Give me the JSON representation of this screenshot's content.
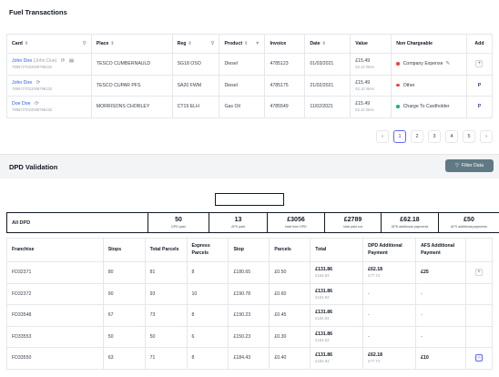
{
  "fuel": {
    "title": "Fuel Transactions",
    "columns": {
      "card": "Card",
      "place": "Place",
      "reg": "Reg",
      "product": "Product",
      "invoice": "Invoice",
      "date": "Date",
      "value": "Value",
      "non_chargeable": "Non Chargeable",
      "add": "Add"
    },
    "rows": [
      {
        "card_name": "John Doe",
        "card_alias": "(John Doe)",
        "card_number": "7896727022008796232",
        "place": "TESCO CUMBERNAULD",
        "reg": "SG18 OSO",
        "product": "Diesel",
        "invoice": "4785123",
        "date": "01/03/2021",
        "value": "£15.49",
        "value_sub": "62.10 litres",
        "status": "Company Expense",
        "status_color": "#ef4444"
      },
      {
        "card_name": "John Doe",
        "card_alias": "",
        "card_number": "7896727022008796232",
        "place": "TESCO CUPAR PFS",
        "reg": "SA20 FWM",
        "product": "Diesel",
        "invoice": "4785175",
        "date": "21/02/2021",
        "value": "£15.49",
        "value_sub": "62.10 litres",
        "status": "Other",
        "status_color": "#ef4444"
      },
      {
        "card_name": "Doe Doe",
        "card_alias": "",
        "card_number": "7896727022008796232",
        "place": "MORRISONS CHORLEY",
        "reg": "CT19 ELH",
        "product": "Gas Oil",
        "invoice": "4785549",
        "date": "11/02/2021",
        "value": "£15.49",
        "value_sub": "62.10 litres",
        "status": "Charge To Cardholder",
        "status_color": "#10b981"
      }
    ],
    "pagination": {
      "prev": "‹",
      "pages": [
        "1",
        "2",
        "3",
        "4",
        "5"
      ],
      "active": "1",
      "next": "›"
    }
  },
  "dpd": {
    "title": "DPD Validation",
    "filter_label": "Filter Data",
    "summary": {
      "label": "All DPD",
      "cells": [
        {
          "value": "50",
          "label": "DPD paid"
        },
        {
          "value": "13",
          "label": "AFS paid"
        },
        {
          "value": "£3056",
          "label": "total from DPD"
        },
        {
          "value": "£2789",
          "label": "total paid out"
        },
        {
          "value": "£62.18",
          "label": "DPD additional payments"
        },
        {
          "value": "£50",
          "label": "AFS additional payments"
        }
      ]
    },
    "columns": {
      "franchise": "Franchise",
      "stops": "Stops",
      "total_parcels": "Total Parcels",
      "express_parcels": "Express Parcels",
      "stop": "Stop",
      "parcels": "Parcels",
      "total": "Total",
      "dpd_additional": "DPD Additional Payment",
      "afs_additional": "AFS Additional Payment"
    },
    "rows": [
      {
        "franchise": "FD32371",
        "stops": "80",
        "total_parcels": "81",
        "express_parcels": "8",
        "stop": "£180.65",
        "parcels": "£0.50",
        "total": "£131.86",
        "total_sub": "£164.83",
        "dpd_add": "£62.18",
        "dpd_add_sub": "£77.73",
        "afs_add": "£25",
        "action": "plus"
      },
      {
        "franchise": "FD32372",
        "stops": "90",
        "total_parcels": "93",
        "express_parcels": "10",
        "stop": "£190.78",
        "parcels": "£0.60",
        "total": "£131.86",
        "total_sub": "£164.83",
        "dpd_add": "-",
        "dpd_add_sub": "",
        "afs_add": "-",
        "action": ""
      },
      {
        "franchise": "FD33548",
        "stops": "67",
        "total_parcels": "73",
        "express_parcels": "8",
        "stop": "£190.23",
        "parcels": "£0.45",
        "total": "£131.86",
        "total_sub": "£164.83",
        "dpd_add": "-",
        "dpd_add_sub": "",
        "afs_add": "-",
        "action": ""
      },
      {
        "franchise": "FD33553",
        "stops": "50",
        "total_parcels": "50",
        "express_parcels": "6",
        "stop": "£150.23",
        "parcels": "£0.30",
        "total": "£131.86",
        "total_sub": "£164.83",
        "dpd_add": "-",
        "dpd_add_sub": "",
        "afs_add": "-",
        "action": ""
      },
      {
        "franchise": "FD33550",
        "stops": "63",
        "total_parcels": "71",
        "express_parcels": "8",
        "stop": "£184.43",
        "parcels": "£0.40",
        "total": "£131.86",
        "total_sub": "£164.83",
        "dpd_add": "£62.18",
        "dpd_add_sub": "£77.73",
        "afs_add": "£10",
        "action": "minus"
      }
    ]
  }
}
